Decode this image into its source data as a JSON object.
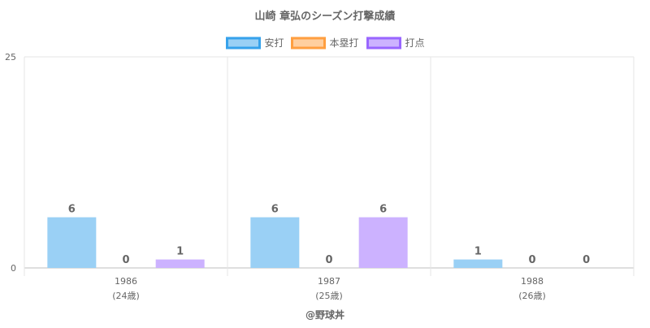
{
  "chart_data": {
    "type": "bar",
    "title": "山崎 章弘のシーズン打撃成績",
    "categories": [
      {
        "year": "1986",
        "age": "(24歳)"
      },
      {
        "year": "1987",
        "age": "(25歳)"
      },
      {
        "year": "1988",
        "age": "(26歳)"
      }
    ],
    "series": [
      {
        "name": "安打",
        "values": [
          6,
          6,
          1
        ],
        "fill": "#9ad0f5",
        "stroke": "#36a2eb"
      },
      {
        "name": "本塁打",
        "values": [
          0,
          0,
          0
        ],
        "fill": "#ffcf9f",
        "stroke": "#ff9f40"
      },
      {
        "name": "打点",
        "values": [
          1,
          6,
          0
        ],
        "fill": "#ccb2ff",
        "stroke": "#9966ff"
      }
    ],
    "ylim": [
      0,
      25
    ],
    "yticks": [
      0,
      25
    ],
    "grid": true,
    "legend_position": "top",
    "credit": "@野球丼"
  }
}
